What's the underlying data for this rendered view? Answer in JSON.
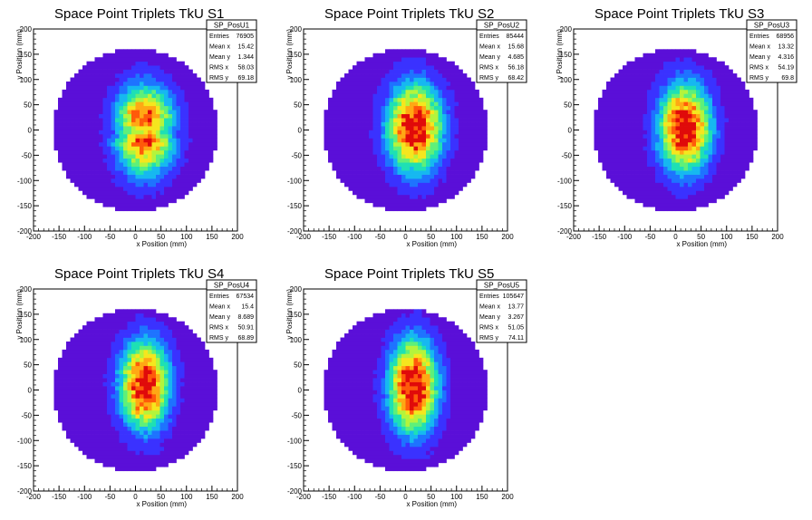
{
  "chart_data": [
    {
      "type": "heatmap",
      "title": "Space Point Triplets TkU S1",
      "xlabel": "x Position (mm)",
      "ylabel": "y Position (mm)",
      "xlim": [
        -200,
        200
      ],
      "ylim": [
        -200,
        200
      ],
      "x_ticks": [
        "-200",
        "-150",
        "-100",
        "-50",
        "0",
        "50",
        "100",
        "150",
        "200"
      ],
      "y_ticks": [
        "-200",
        "-150",
        "-100",
        "-50",
        "0",
        "50",
        "100",
        "150",
        "200"
      ],
      "stats": {
        "name": "SP_PosU1",
        "entries": "76905",
        "mean_x": "15.42",
        "mean_y": "1.344",
        "rms_x": "58.03",
        "rms_y": "69.18"
      },
      "profile": {
        "cx": 18,
        "cy": 0,
        "sx": 40,
        "sy": 60,
        "radius": 162,
        "dip": 0.35
      }
    },
    {
      "type": "heatmap",
      "title": "Space Point Triplets TkU S2",
      "xlabel": "x Position (mm)",
      "ylabel": "y Position (mm)",
      "xlim": [
        -200,
        200
      ],
      "ylim": [
        -200,
        200
      ],
      "x_ticks": [
        "-200",
        "-150",
        "-100",
        "-50",
        "0",
        "50",
        "100",
        "150",
        "200"
      ],
      "y_ticks": [
        "-200",
        "-150",
        "-100",
        "-50",
        "0",
        "50",
        "100",
        "150",
        "200"
      ],
      "stats": {
        "name": "SP_PosU2",
        "entries": "85444",
        "mean_x": "15.68",
        "mean_y": "4.685",
        "rms_x": "56.18",
        "rms_y": "68.42"
      },
      "profile": {
        "cx": 18,
        "cy": 5,
        "sx": 38,
        "sy": 62,
        "radius": 162,
        "dip": 0.0
      }
    },
    {
      "type": "heatmap",
      "title": "Space Point Triplets TkU S3",
      "xlabel": "x Position (mm)",
      "ylabel": "y Position (mm)",
      "xlim": [
        -200,
        200
      ],
      "ylim": [
        -200,
        200
      ],
      "x_ticks": [
        "-200",
        "-150",
        "-100",
        "-50",
        "0",
        "50",
        "100",
        "150",
        "200"
      ],
      "y_ticks": [
        "-200",
        "-150",
        "-100",
        "-50",
        "0",
        "50",
        "100",
        "150",
        "200"
      ],
      "stats": {
        "name": "SP_PosU3",
        "entries": "68956",
        "mean_x": "13.32",
        "mean_y": "4.316",
        "rms_x": "54.19",
        "rms_y": "69.8"
      },
      "profile": {
        "cx": 18,
        "cy": 5,
        "sx": 36,
        "sy": 62,
        "radius": 162,
        "dip": 0.0
      }
    },
    {
      "type": "heatmap",
      "title": "Space Point Triplets TkU S4",
      "xlabel": "x Position (mm)",
      "ylabel": "y Position (mm)",
      "xlim": [
        -200,
        200
      ],
      "ylim": [
        -200,
        200
      ],
      "x_ticks": [
        "-200",
        "-150",
        "-100",
        "-50",
        "0",
        "50",
        "100",
        "150",
        "200"
      ],
      "y_ticks": [
        "-200",
        "-150",
        "-100",
        "-50",
        "0",
        "50",
        "100",
        "150",
        "200"
      ],
      "stats": {
        "name": "SP_PosU4",
        "entries": "67534",
        "mean_x": "15.4",
        "mean_y": "8.689",
        "rms_x": "50.91",
        "rms_y": "68.89"
      },
      "profile": {
        "cx": 18,
        "cy": 10,
        "sx": 34,
        "sy": 62,
        "radius": 162,
        "dip": 0.0
      }
    },
    {
      "type": "heatmap",
      "title": "Space Point Triplets TkU S5",
      "xlabel": "x Position (mm)",
      "ylabel": "y Position (mm)",
      "xlim": [
        -200,
        200
      ],
      "ylim": [
        -200,
        200
      ],
      "x_ticks": [
        "-200",
        "-150",
        "-100",
        "-50",
        "0",
        "50",
        "100",
        "150",
        "200"
      ],
      "y_ticks": [
        "-200",
        "-150",
        "-100",
        "-50",
        "0",
        "50",
        "100",
        "150",
        "200"
      ],
      "stats": {
        "name": "SP_PosU5",
        "entries": "105647",
        "mean_x": "13.77",
        "mean_y": "3.267",
        "rms_x": "51.05",
        "rms_y": "74.11"
      },
      "profile": {
        "cx": 15,
        "cy": 8,
        "sx": 34,
        "sy": 66,
        "radius": 162,
        "dip": 0.0
      }
    }
  ],
  "stat_labels": {
    "entries": "Entries",
    "mean_x": "Mean x",
    "mean_y": "Mean y",
    "rms_x": "RMS x",
    "rms_y": "RMS y"
  },
  "colors": {
    "palette": [
      "#5a0fd8",
      "#3a32ff",
      "#1e73ff",
      "#16b8f0",
      "#1ee0b4",
      "#5ef07a",
      "#b4f43c",
      "#f5e61e",
      "#ffa814",
      "#ff5a0a",
      "#e00a0a"
    ]
  }
}
